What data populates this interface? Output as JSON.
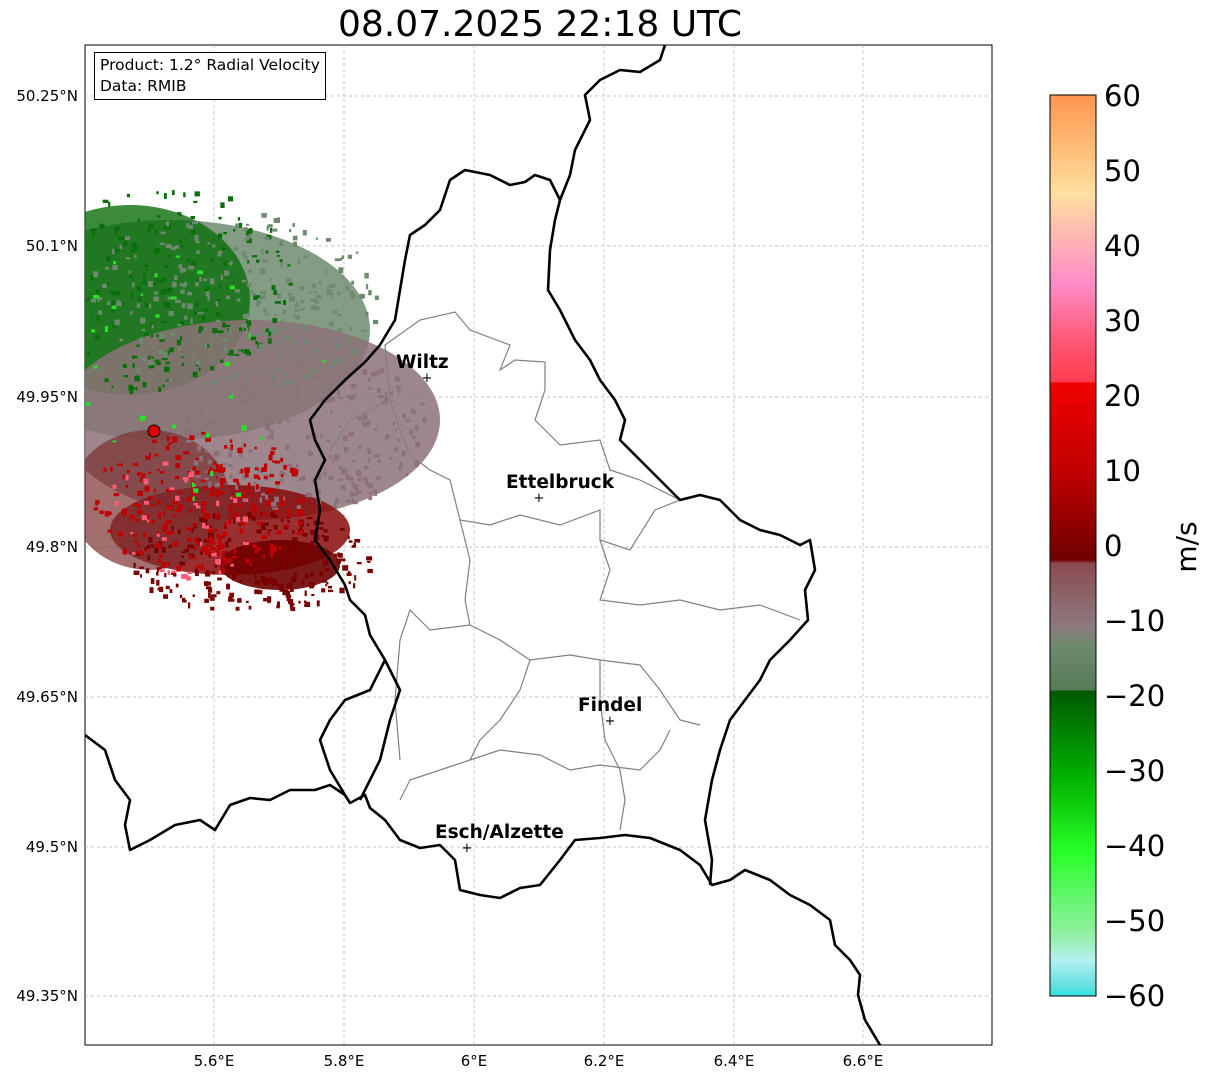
{
  "title": "08.07.2025 22:18 UTC",
  "info": {
    "product": "Product: 1.2° Radial Velocity",
    "source": "Data: RMIB"
  },
  "axes": {
    "lat_labels": [
      "50.25°N",
      "50.1°N",
      "49.95°N",
      "49.8°N",
      "49.65°N",
      "49.5°N",
      "49.35°N"
    ],
    "lon_labels": [
      "5.6°E",
      "5.8°E",
      "6°E",
      "6.2°E",
      "6.4°E",
      "6.6°E"
    ]
  },
  "cities": [
    {
      "name": "Wiltz"
    },
    {
      "name": "Ettelbruck"
    },
    {
      "name": "Findel"
    },
    {
      "name": "Esch/Alzette"
    }
  ],
  "colorbar": {
    "unit": "m/s",
    "min": -60,
    "max": 60,
    "ticks": [
      "60",
      "50",
      "40",
      "30",
      "20",
      "10",
      "0",
      "−10",
      "−20",
      "−30",
      "−40",
      "−50",
      "−60"
    ]
  },
  "colors": {
    "radar_marker": "#e00000",
    "border": "#000000",
    "canton_lines": "#808080"
  }
}
